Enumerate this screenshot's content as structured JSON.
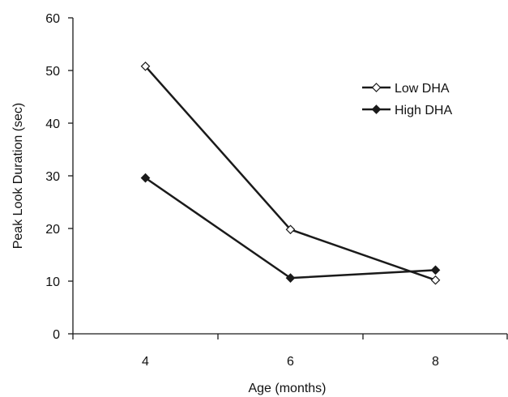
{
  "chart_data": {
    "type": "line",
    "categories": [
      "4",
      "6",
      "8"
    ],
    "xlabel": "Age (months)",
    "ylabel": "Peak Look Duration (sec)",
    "ylim": [
      0,
      60
    ],
    "yticks": [
      0,
      10,
      20,
      30,
      40,
      50,
      60
    ],
    "grid": false,
    "legend_position": "top-right",
    "series": [
      {
        "name": "Low DHA",
        "marker": "open-diamond",
        "color": "#1a1a1a",
        "values": [
          50.8,
          19.8,
          10.2
        ]
      },
      {
        "name": "High DHA",
        "marker": "filled-diamond",
        "color": "#1a1a1a",
        "values": [
          29.6,
          10.6,
          12.1
        ]
      }
    ]
  }
}
